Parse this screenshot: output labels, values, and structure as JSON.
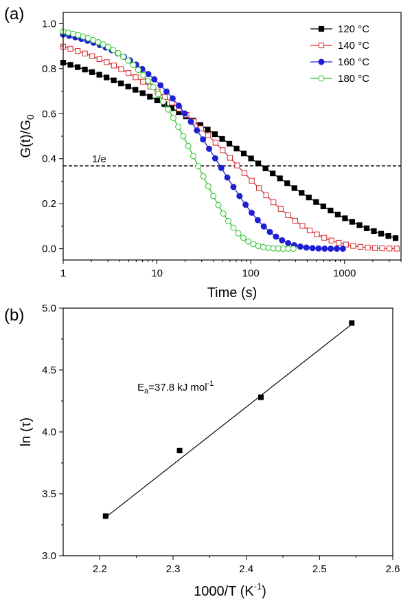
{
  "chart_data": [
    {
      "panel_label": "(a)",
      "type": "line",
      "xscale": "log",
      "xlabel": "Time (s)",
      "ylabel_main": "G(t)/G",
      "ylabel_sub": "0",
      "xlim": [
        1,
        4000
      ],
      "ylim": [
        -0.05,
        1.05
      ],
      "xticks": [
        1,
        10,
        100,
        1000
      ],
      "xtick_labels": [
        "1",
        "10",
        "100",
        "1000"
      ],
      "yticks": [
        0.0,
        0.2,
        0.4,
        0.6,
        0.8,
        1.0
      ],
      "ytick_labels": [
        "0.0",
        "0.2",
        "0.4",
        "0.6",
        "0.8",
        "1.0"
      ],
      "grid": false,
      "legend_position": "top-right",
      "reference_line": {
        "y": 0.368,
        "label": "1/e",
        "style": "dashed"
      },
      "series": [
        {
          "name": "120 °C",
          "color": "#000000",
          "marker": "square-filled",
          "tau": 131.5,
          "beta": 0.34,
          "t_end": 3500
        },
        {
          "name": "140 °C",
          "color": "#d62728",
          "marker": "square-open",
          "tau": 72.5,
          "beta": 0.52,
          "t_end": 3600
        },
        {
          "name": "160 °C",
          "color": "#1f1fd6",
          "marker": "circle-filled",
          "tau": 47.0,
          "beta": 0.78,
          "t_end": 960
        },
        {
          "name": "180 °C",
          "color": "#27c227",
          "marker": "circle-open",
          "tau": 27.5,
          "beta": 1.0,
          "t_end": 285
        }
      ]
    },
    {
      "panel_label": "(b)",
      "type": "scatter",
      "xlabel_main": "1000/T (K",
      "xlabel_sup": "-1",
      "xlabel_end": ")",
      "ylabel": "ln (τ)",
      "xlim": [
        2.15,
        2.6
      ],
      "ylim": [
        3.0,
        5.0
      ],
      "xticks": [
        2.2,
        2.3,
        2.4,
        2.5,
        2.6
      ],
      "xtick_labels": [
        "2.2",
        "2.3",
        "2.4",
        "2.5",
        "2.6"
      ],
      "yticks": [
        3.0,
        3.5,
        4.0,
        4.5,
        5.0
      ],
      "ytick_labels": [
        "3.0",
        "3.5",
        "4.0",
        "4.5",
        "5.0"
      ],
      "grid": false,
      "points": [
        {
          "x": 2.208,
          "y": 3.32
        },
        {
          "x": 2.309,
          "y": 3.85
        },
        {
          "x": 2.42,
          "y": 4.28
        },
        {
          "x": 2.544,
          "y": 4.88
        }
      ],
      "fit_line": {
        "x": [
          2.208,
          2.544
        ],
        "y": [
          3.31,
          4.87
        ]
      },
      "annotation": {
        "main": "E",
        "sub": "a",
        "text": "=37.8 kJ mol",
        "sup": "-1"
      }
    }
  ]
}
